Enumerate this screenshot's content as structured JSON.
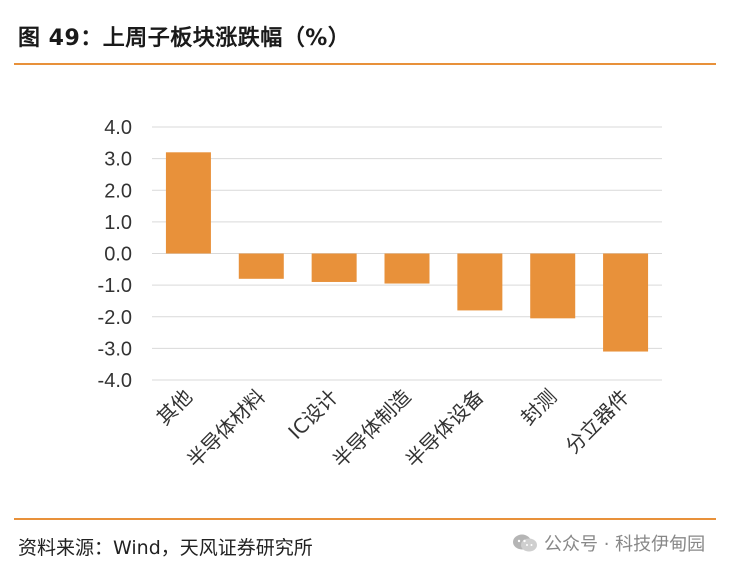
{
  "figure": {
    "title": "图 49：上周子板块涨跌幅（%）",
    "source": "资料来源：Wind，天风证券研究所",
    "watermark": "公众号 · 科技伊甸园"
  },
  "colors": {
    "bar": "#e8913a",
    "grid": "#d9d9d9",
    "accent_rule": "#e8913a"
  },
  "chart_data": {
    "type": "bar",
    "categories": [
      "其他",
      "半导体材料",
      "IC设计",
      "半导体制造",
      "半导体设备",
      "封测",
      "分立器件"
    ],
    "values": [
      3.2,
      -0.8,
      -0.9,
      -0.95,
      -1.8,
      -2.05,
      -3.1
    ],
    "ylim": [
      -4.0,
      4.0
    ],
    "yticks": [
      4.0,
      3.0,
      2.0,
      1.0,
      0.0,
      -1.0,
      -2.0,
      -3.0,
      -4.0
    ],
    "ytick_labels": [
      "4.0",
      "3.0",
      "2.0",
      "1.0",
      "0.0",
      "-1.0",
      "-2.0",
      "-3.0",
      "-4.0"
    ],
    "xlabel": "",
    "ylabel": "",
    "grid": true,
    "legend": "none"
  }
}
